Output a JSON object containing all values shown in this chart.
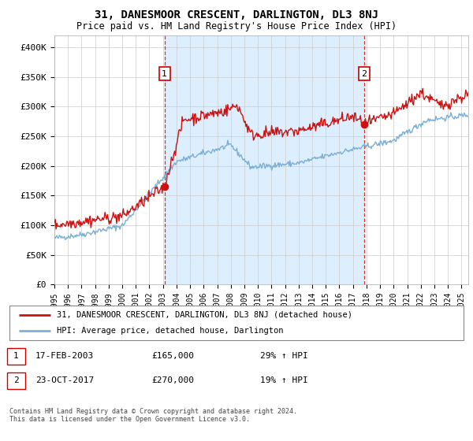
{
  "title": "31, DANESMOOR CRESCENT, DARLINGTON, DL3 8NJ",
  "subtitle": "Price paid vs. HM Land Registry's House Price Index (HPI)",
  "legend_line1": "31, DANESMOOR CRESCENT, DARLINGTON, DL3 8NJ (detached house)",
  "legend_line2": "HPI: Average price, detached house, Darlington",
  "transaction1_date": "17-FEB-2003",
  "transaction1_price": "£165,000",
  "transaction1_hpi": "29% ↑ HPI",
  "transaction2_date": "23-OCT-2017",
  "transaction2_price": "£270,000",
  "transaction2_hpi": "19% ↑ HPI",
  "footer": "Contains HM Land Registry data © Crown copyright and database right 2024.\nThis data is licensed under the Open Government Licence v3.0.",
  "ylim": [
    0,
    420000
  ],
  "yticks": [
    0,
    50000,
    100000,
    150000,
    200000,
    250000,
    300000,
    350000,
    400000
  ],
  "ytick_labels": [
    "£0",
    "£50K",
    "£100K",
    "£150K",
    "£200K",
    "£250K",
    "£300K",
    "£350K",
    "£400K"
  ],
  "hpi_color": "#7bafd4",
  "price_color": "#cc1111",
  "shade_color": "#ddeeff",
  "transaction1_x": 2003.12,
  "transaction1_y": 165000,
  "transaction2_x": 2017.81,
  "transaction2_y": 270000,
  "background_color": "#ffffff",
  "grid_color": "#cccccc",
  "xlim_start": 1995,
  "xlim_end": 2025.5
}
